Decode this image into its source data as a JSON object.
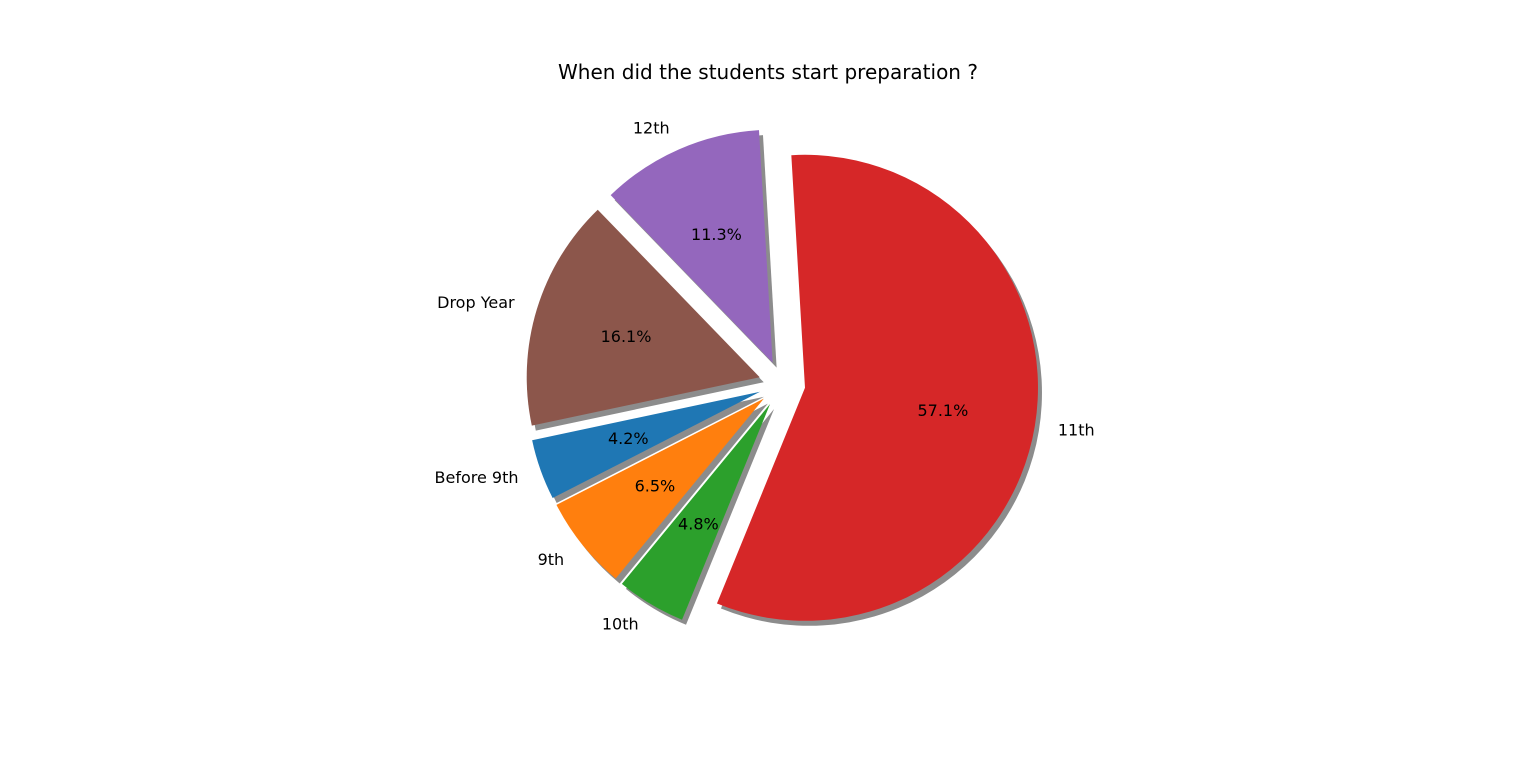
{
  "chart_data": {
    "type": "pie",
    "title": "When did the students start preparation ?",
    "categories": [
      "Before 9th",
      "9th",
      "10th",
      "11th",
      "12th",
      "Drop Year"
    ],
    "values": [
      4.2,
      6.5,
      4.8,
      57.1,
      11.3,
      16.1
    ],
    "pct_labels": [
      "4.2%",
      "6.5%",
      "4.8%",
      "57.1%",
      "11.3%",
      "16.1%"
    ],
    "colors": [
      "#1f77b4",
      "#ff7f0e",
      "#2ca02c",
      "#d62728",
      "#9467bd",
      "#8c564b"
    ],
    "start_angle_deg": 192,
    "counterclockwise": true,
    "explode": 0.1,
    "shadow": true,
    "legend": "none"
  }
}
